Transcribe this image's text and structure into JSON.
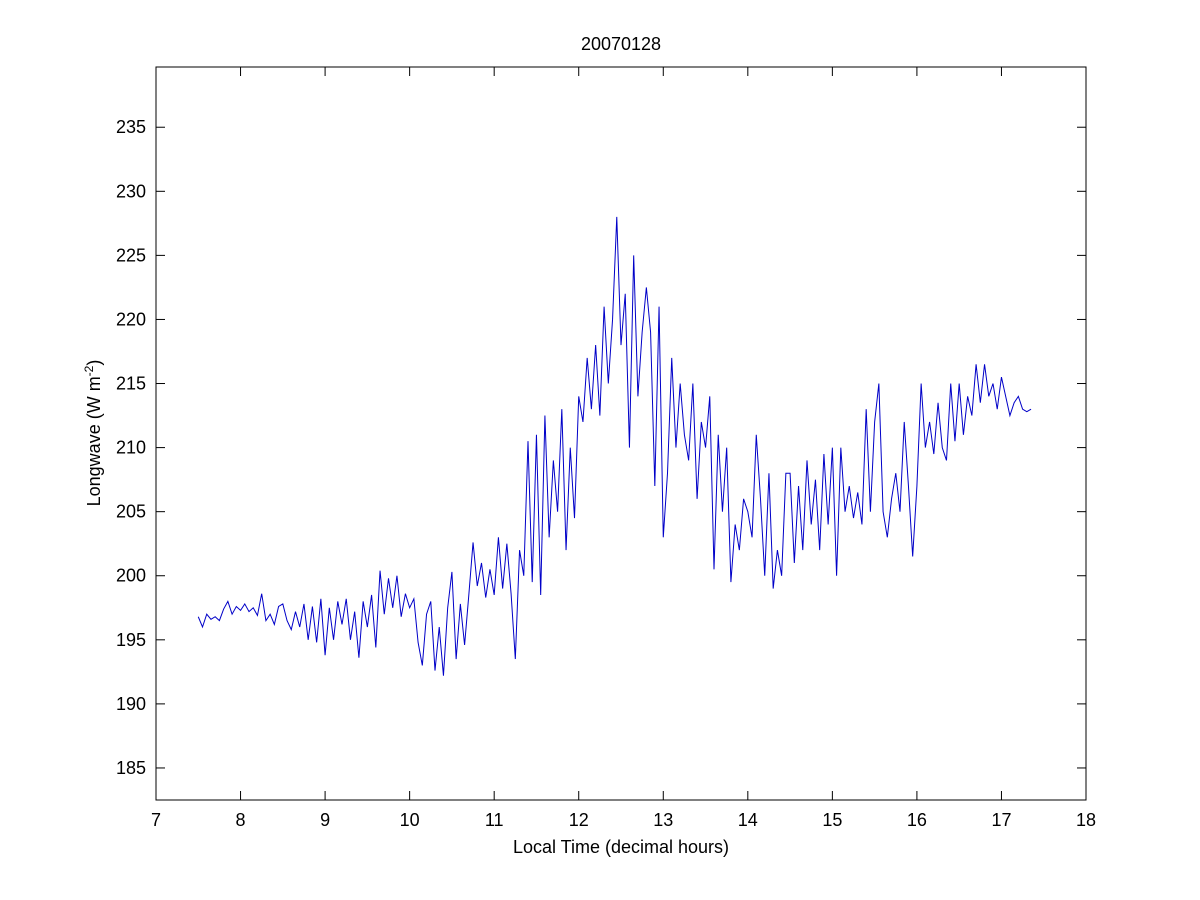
{
  "chart_data": {
    "type": "line",
    "title": "20070128",
    "xlabel": "Local Time (decimal hours)",
    "ylabel": {
      "text": "Longwave (W m",
      "sup": "-2",
      "end": ")"
    },
    "xlim": [
      7,
      18
    ],
    "xticks": [
      7,
      8,
      9,
      10,
      11,
      12,
      13,
      14,
      15,
      16,
      17,
      18
    ],
    "ylim": [
      182.5,
      239.7
    ],
    "yticks": [
      185,
      190,
      195,
      200,
      205,
      210,
      215,
      220,
      225,
      230,
      235
    ],
    "x": [
      7.5,
      7.55,
      7.6,
      7.65,
      7.7,
      7.75,
      7.8,
      7.85,
      7.9,
      7.95,
      8,
      8.05,
      8.1,
      8.15,
      8.2,
      8.25,
      8.3,
      8.35,
      8.4,
      8.45,
      8.5,
      8.55,
      8.6,
      8.65,
      8.7,
      8.75,
      8.8,
      8.85,
      8.9,
      8.95,
      9,
      9.05,
      9.1,
      9.15,
      9.2,
      9.25,
      9.3,
      9.35,
      9.4,
      9.45,
      9.5,
      9.55,
      9.6,
      9.65,
      9.7,
      9.75,
      9.8,
      9.85,
      9.9,
      9.95,
      10,
      10.05,
      10.1,
      10.15,
      10.2,
      10.25,
      10.3,
      10.35,
      10.4,
      10.45,
      10.5,
      10.55,
      10.6,
      10.65,
      10.7,
      10.75,
      10.8,
      10.85,
      10.9,
      10.95,
      11,
      11.05,
      11.1,
      11.15,
      11.2,
      11.25,
      11.3,
      11.35,
      11.4,
      11.45,
      11.5,
      11.55,
      11.6,
      11.65,
      11.7,
      11.75,
      11.8,
      11.85,
      11.9,
      11.95,
      12,
      12.05,
      12.1,
      12.15,
      12.2,
      12.25,
      12.3,
      12.35,
      12.4,
      12.45,
      12.5,
      12.55,
      12.6,
      12.65,
      12.7,
      12.75,
      12.8,
      12.85,
      12.9,
      12.95,
      13,
      13.05,
      13.1,
      13.15,
      13.2,
      13.25,
      13.3,
      13.35,
      13.4,
      13.45,
      13.5,
      13.55,
      13.6,
      13.65,
      13.7,
      13.75,
      13.8,
      13.85,
      13.9,
      13.95,
      14,
      14.05,
      14.1,
      14.15,
      14.2,
      14.25,
      14.3,
      14.35,
      14.4,
      14.45,
      14.5,
      14.55,
      14.6,
      14.65,
      14.7,
      14.75,
      14.8,
      14.85,
      14.9,
      14.95,
      15,
      15.05,
      15.1,
      15.15,
      15.2,
      15.25,
      15.3,
      15.35,
      15.4,
      15.45,
      15.5,
      15.55,
      15.6,
      15.65,
      15.7,
      15.75,
      15.8,
      15.85,
      15.9,
      15.95,
      16,
      16.05,
      16.1,
      16.15,
      16.2,
      16.25,
      16.3,
      16.35,
      16.4,
      16.45,
      16.5,
      16.55,
      16.6,
      16.65,
      16.7,
      16.75,
      16.8,
      16.85,
      16.9,
      16.95,
      17,
      17.05,
      17.1,
      17.15,
      17.2,
      17.25,
      17.3,
      17.35
    ],
    "series": [
      {
        "color": "#0000c8",
        "values": [
          196.8,
          196.0,
          197.0,
          196.6,
          196.8,
          196.5,
          197.4,
          198.0,
          197.0,
          197.6,
          197.3,
          197.8,
          197.2,
          197.5,
          196.9,
          198.6,
          196.5,
          197.0,
          196.2,
          197.6,
          197.8,
          196.5,
          195.8,
          197.2,
          196.0,
          197.8,
          195.0,
          197.6,
          194.8,
          198.2,
          193.8,
          197.5,
          195.0,
          198.0,
          196.2,
          198.2,
          195.0,
          197.2,
          193.6,
          198.0,
          196.0,
          198.5,
          194.4,
          200.4,
          197.0,
          199.8,
          197.5,
          200.0,
          196.8,
          198.6,
          197.5,
          198.2,
          194.8,
          193.0,
          197.0,
          198.0,
          192.6,
          196.0,
          192.2,
          197.5,
          200.3,
          193.5,
          197.8,
          194.6,
          198.5,
          202.6,
          199.2,
          201.0,
          198.3,
          200.5,
          198.5,
          203.0,
          199.0,
          202.5,
          198.6,
          193.5,
          202.0,
          200.0,
          210.5,
          199.5,
          211.0,
          198.5,
          212.5,
          203.0,
          209.0,
          205.0,
          213.0,
          202.0,
          210.0,
          204.5,
          214.0,
          212.0,
          217.0,
          213.0,
          218.0,
          212.5,
          221.0,
          215.0,
          220.0,
          228.0,
          218.0,
          222.0,
          210.0,
          225.0,
          214.0,
          219.0,
          222.5,
          219.0,
          207.0,
          221.0,
          203.0,
          208.0,
          217.0,
          210.0,
          215.0,
          211.0,
          209.0,
          215.0,
          206.0,
          212.0,
          210.0,
          214.0,
          200.5,
          211.0,
          205.0,
          210.0,
          199.5,
          204.0,
          202.0,
          206.0,
          205.0,
          203.0,
          211.0,
          206.0,
          200.0,
          208.0,
          199.0,
          202.0,
          200.0,
          208.0,
          208.0,
          201.0,
          207.0,
          202.0,
          209.0,
          204.0,
          207.5,
          202.0,
          209.5,
          204.0,
          210.0,
          200.0,
          210.0,
          205.0,
          207.0,
          204.5,
          206.5,
          204.0,
          213.0,
          205.0,
          212.0,
          215.0,
          205.0,
          203.0,
          206.0,
          208.0,
          205.0,
          212.0,
          207.0,
          201.5,
          207.0,
          215.0,
          210.0,
          212.0,
          209.5,
          213.5,
          210.0,
          209.0,
          215.0,
          210.5,
          215.0,
          211.0,
          214.0,
          212.5,
          216.5,
          213.5,
          216.5,
          214.0,
          215.0,
          213.0,
          215.5,
          214.0,
          212.5,
          213.5,
          214.0,
          213.0,
          212.8,
          213.0
        ]
      }
    ]
  }
}
